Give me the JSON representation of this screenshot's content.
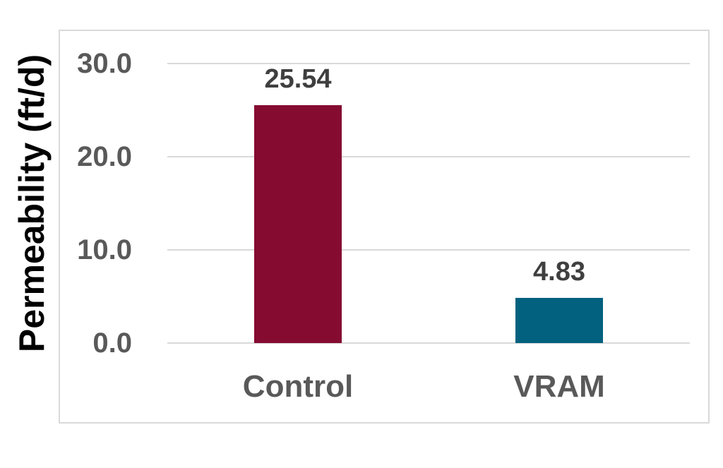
{
  "chart_data": {
    "type": "bar",
    "categories": [
      "Control",
      "VRAM"
    ],
    "values": [
      25.54,
      4.83
    ],
    "value_labels": [
      "25.54",
      "4.83"
    ],
    "title": "",
    "xlabel": "",
    "ylabel": "Permeability (ft/d)",
    "ylim": [
      0,
      30
    ],
    "yticks": [
      {
        "value": 30,
        "label": "30.0"
      },
      {
        "value": 20,
        "label": "20.0"
      },
      {
        "value": 10,
        "label": "10.0"
      },
      {
        "value": 0,
        "label": "0.0"
      }
    ],
    "bar_colors": [
      "#850B31",
      "#02617F"
    ],
    "grid": true,
    "legend": false,
    "layout": {
      "grid_on": true,
      "legend_position": "none",
      "bar_label_position": "above"
    },
    "colors": {
      "background": "#FFFFFF",
      "gridline": "#D9D9D9",
      "chart_border": "#D9D9D9",
      "tick_label": "#595959",
      "category_label": "#595959",
      "value_label": "#3F3F3F",
      "axis_title": "#000000"
    }
  }
}
